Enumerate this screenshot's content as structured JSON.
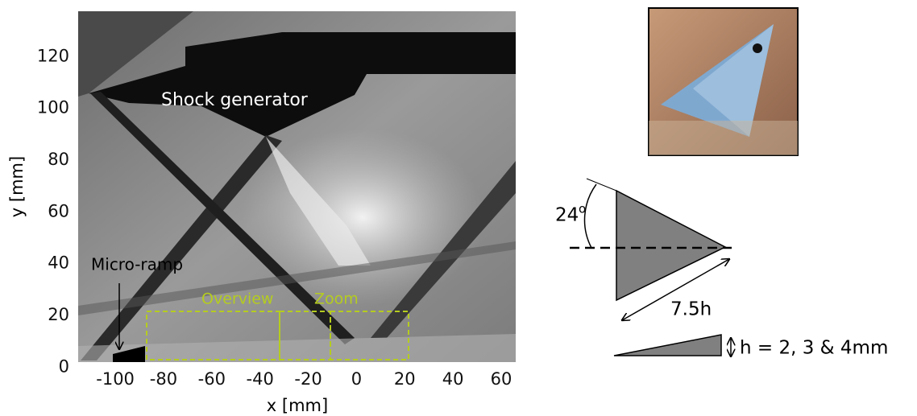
{
  "figure": {
    "schlieren": {
      "xlim": [
        -115.4,
        66
      ],
      "ylim": [
        2,
        137.5
      ],
      "xticks": [
        -100,
        -80,
        -60,
        -40,
        -20,
        0,
        20,
        40,
        60
      ],
      "yticks": [
        0,
        20,
        40,
        60,
        80,
        100,
        120
      ],
      "xlabel": "x [mm]",
      "ylabel": "y [mm]",
      "annotations": {
        "shock_generator": "Shock generator",
        "micro_ramp": "Micro-ramp",
        "overview": "Overview",
        "zoom": "Zoom"
      }
    },
    "diagram": {
      "angle": "24",
      "degree_symbol": "o",
      "length": "7.5h",
      "height": "h = 2, 3 & 4mm"
    }
  }
}
